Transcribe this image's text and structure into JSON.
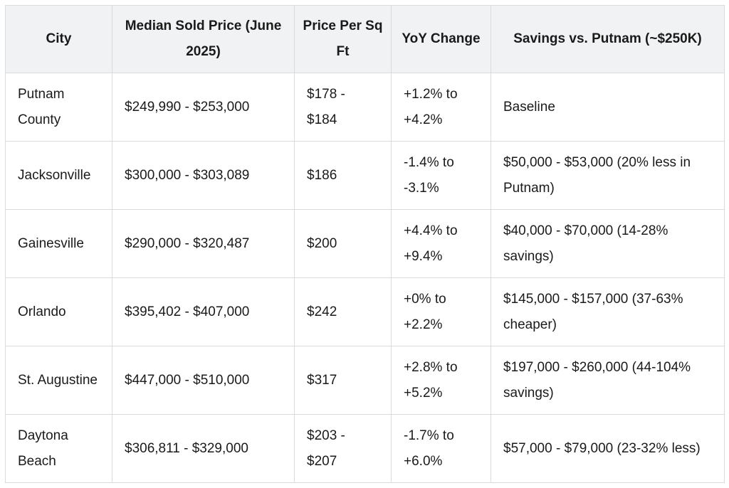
{
  "table": {
    "headers": [
      "City",
      "Median Sold Price (June 2025)",
      "Price Per Sq Ft",
      "YoY Change",
      "Savings vs. Putnam (~$250K)"
    ],
    "rows": [
      [
        "Putnam County",
        "$249,990 - $253,000",
        "$178 - $184",
        "+1.2% to +4.2%",
        "Baseline"
      ],
      [
        "Jacksonville",
        "$300,000 - $303,089",
        "$186",
        "-1.4% to -3.1%",
        "$50,000 - $53,000 (20% less in Putnam)"
      ],
      [
        "Gainesville",
        "$290,000 - $320,487",
        "$200",
        "+4.4% to +9.4%",
        "$40,000 - $70,000 (14-28% savings)"
      ],
      [
        "Orlando",
        "$395,402 - $407,000",
        "$242",
        "+0% to +2.2%",
        "$145,000 - $157,000 (37-63% cheaper)"
      ],
      [
        "St. Augustine",
        "$447,000 - $510,000",
        "$317",
        "+2.8% to +5.2%",
        "$197,000 - $260,000 (44-104% savings)"
      ],
      [
        "Daytona Beach",
        "$306,811 - $329,000",
        "$203 - $207",
        "-1.7% to +6.0%",
        "$57,000 - $79,000 (23-32% less)"
      ]
    ]
  }
}
